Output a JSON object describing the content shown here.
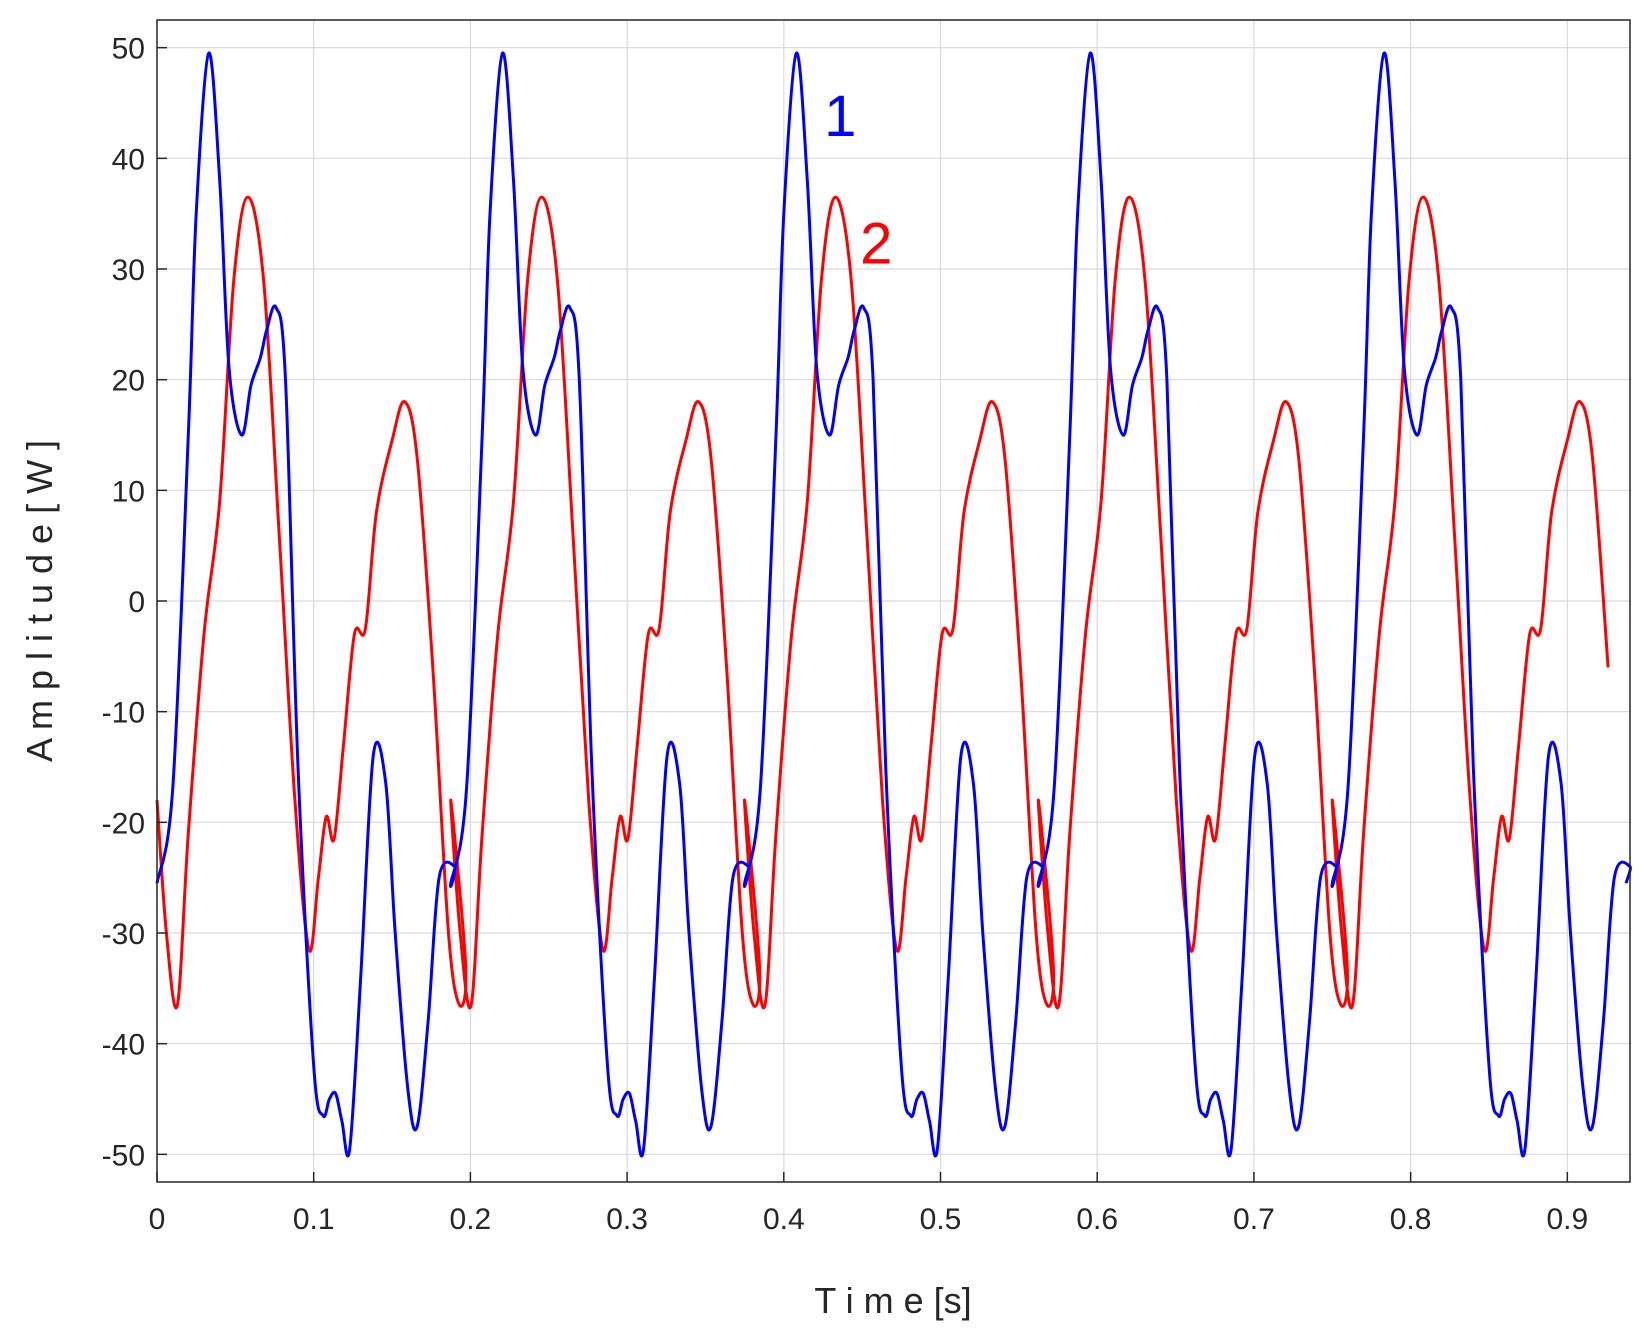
{
  "chart_data": {
    "type": "line",
    "title": "",
    "xlabel": "T i m e [s]",
    "ylabel": "A m p l i t u d e [ W ]",
    "xlim": [
      0,
      0.94
    ],
    "ylim": [
      -52.5,
      52.5
    ],
    "x_ticks": [
      0,
      0.1,
      0.2,
      0.3,
      0.4,
      0.5,
      0.6,
      0.7,
      0.8,
      0.9
    ],
    "x_tick_labels": [
      "0",
      "0.1",
      "0.2",
      "0.3",
      "0.4",
      "0.5",
      "0.6",
      "0.7",
      "0.8",
      "0.9"
    ],
    "y_ticks": [
      50,
      40,
      30,
      20,
      10,
      0,
      -10,
      -20,
      -30,
      -40,
      -50
    ],
    "y_tick_labels": [
      "50",
      "40",
      "30",
      "20",
      "10",
      "0",
      "-10",
      "-20",
      "-30",
      "-40",
      "-50"
    ],
    "grid": true,
    "series": [
      {
        "name": "1",
        "color": "#0000ff",
        "period": 0.1875,
        "x_end": 0.94,
        "x": [
          0.0,
          0.01,
          0.02,
          0.025,
          0.033,
          0.04,
          0.046,
          0.054,
          0.06,
          0.066,
          0.07,
          0.076,
          0.082,
          0.09,
          0.1,
          0.106,
          0.11,
          0.114,
          0.118,
          0.123,
          0.13,
          0.138,
          0.146,
          0.152,
          0.16,
          0.166,
          0.173,
          0.18,
          0.19,
          0.1875
        ],
        "y": [
          -25.5,
          -17,
          15,
          35,
          49.5,
          38,
          21,
          15,
          19.5,
          22,
          24.5,
          26.5,
          20,
          -15,
          -42,
          -46.5,
          -45,
          -44.5,
          -47,
          -49.5,
          -34,
          -14,
          -16.5,
          -30,
          -44,
          -47.5,
          -38,
          -25,
          -24,
          -25.5
        ]
      },
      {
        "name": "2",
        "color": "#ff0000",
        "period": 0.1875,
        "x_end": 0.93,
        "x": [
          0.0,
          0.006,
          0.013,
          0.02,
          0.03,
          0.04,
          0.049,
          0.058,
          0.068,
          0.078,
          0.088,
          0.097,
          0.103,
          0.108,
          0.113,
          0.119,
          0.126,
          0.133,
          0.14,
          0.15,
          0.158,
          0.166,
          0.176,
          0.186,
          0.193,
          0.197,
          0.1875
        ],
        "y": [
          -18,
          -30,
          -36.5,
          -21,
          -3,
          9,
          29,
          36.5,
          29,
          6,
          -18,
          -31.5,
          -25,
          -19.5,
          -21.5,
          -13,
          -3,
          -2.5,
          8,
          14.5,
          18,
          13,
          -6,
          -30,
          -36.5,
          -33,
          -18
        ]
      }
    ],
    "annotations": [
      {
        "text": "1",
        "x": 0.436,
        "y": 44,
        "color": "#0000ff"
      },
      {
        "text": "2",
        "x": 0.459,
        "y": 32.5,
        "color": "#ff0000"
      }
    ]
  }
}
